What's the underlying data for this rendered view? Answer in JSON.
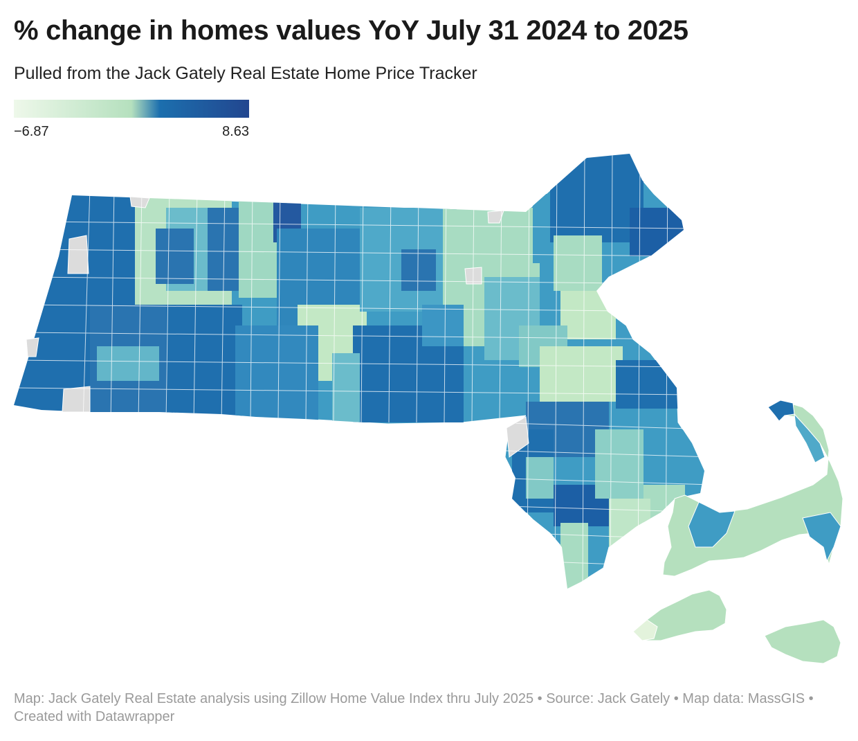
{
  "title": "% change in homes values YoY July 31 2024 to 2025",
  "subtitle": "Pulled from the Jack Gately Real Estate Home Price Tracker",
  "legend": {
    "min_label": "−6.87",
    "max_label": "8.63",
    "min_value": -6.87,
    "max_value": 8.63,
    "colors": [
      "#eef8ea",
      "#b5e0be",
      "#1c6fae",
      "#22468f"
    ],
    "no_data_color": "#dcdcdc"
  },
  "footer": "Map: Jack Gately Real Estate analysis using Zillow Home Value Index thru July 2025 • Source: Jack Gately • Map data: MassGIS • Created with Datawrapper"
}
